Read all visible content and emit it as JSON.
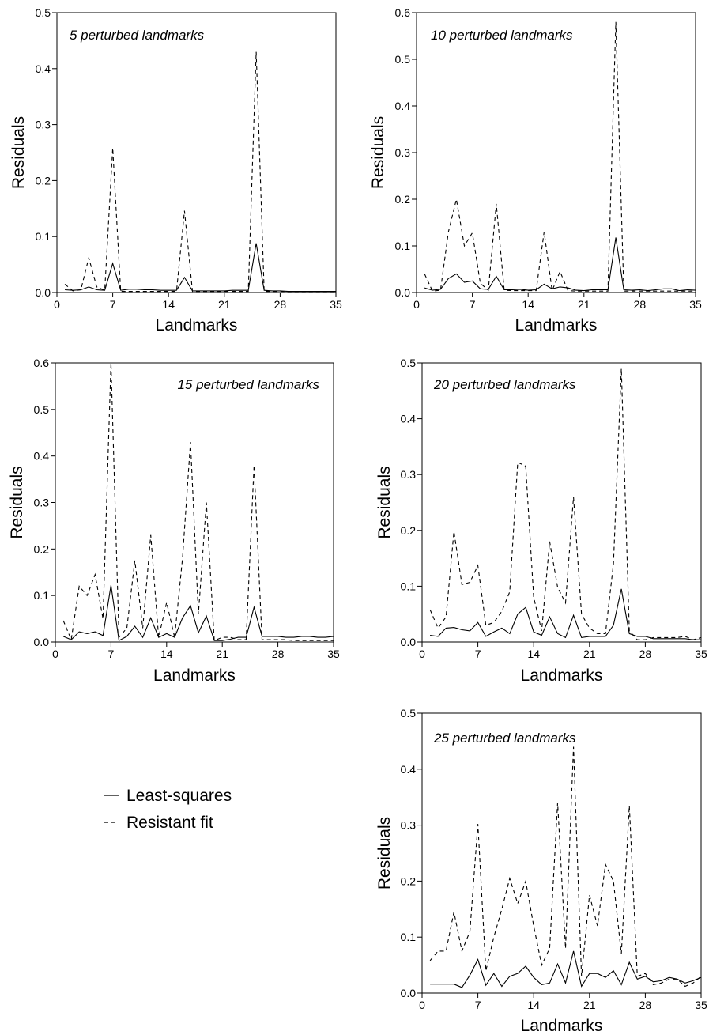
{
  "legend": [
    {
      "label": "Least-squares",
      "style": "solid"
    },
    {
      "label": "Resistant fit",
      "style": "dashed"
    }
  ],
  "chart_data": [
    {
      "type": "line",
      "title": "5 perturbed landmarks",
      "xlabel": "Landmarks",
      "ylabel": "Residuals",
      "xlim": [
        0,
        35
      ],
      "ylim": [
        0,
        0.5
      ],
      "xticks": [
        0,
        7,
        14,
        21,
        28,
        35
      ],
      "yticks": [
        0.0,
        0.1,
        0.2,
        0.3,
        0.4,
        0.5
      ],
      "ytick_labels": [
        "0.0",
        "0.1",
        "0.2",
        "0.3",
        "0.4",
        "0.5"
      ],
      "x": [
        1,
        2,
        3,
        4,
        5,
        6,
        7,
        8,
        9,
        10,
        11,
        12,
        13,
        14,
        15,
        16,
        17,
        18,
        19,
        20,
        21,
        22,
        23,
        24,
        25,
        26,
        27,
        28,
        29,
        30,
        31,
        32,
        33,
        34,
        35
      ],
      "series": [
        {
          "name": "Least-squares",
          "style": "solid",
          "values": [
            0.005,
            0.004,
            0.005,
            0.01,
            0.005,
            0.004,
            0.052,
            0.004,
            0.006,
            0.006,
            0.005,
            0.005,
            0.004,
            0.004,
            0.004,
            0.027,
            0.003,
            0.003,
            0.003,
            0.003,
            0.003,
            0.004,
            0.004,
            0.004,
            0.088,
            0.004,
            0.003,
            0.003,
            0.002,
            0.002,
            0.002,
            0.002,
            0.002,
            0.002,
            0.002
          ]
        },
        {
          "name": "Resistant fit",
          "style": "dashed",
          "values": [
            0.015,
            0.003,
            0.005,
            0.062,
            0.01,
            0.004,
            0.258,
            0.002,
            0.002,
            0.002,
            0.002,
            0.002,
            0.002,
            0.002,
            0.002,
            0.146,
            0.002,
            0.002,
            0.002,
            0.002,
            0.002,
            0.002,
            0.002,
            0.002,
            0.43,
            0.002,
            0.002,
            0.002,
            0.002,
            0.002,
            0.002,
            0.002,
            0.002,
            0.002,
            0.002
          ]
        }
      ]
    },
    {
      "type": "line",
      "title": "10 perturbed landmarks",
      "xlabel": "Landmarks",
      "ylabel": "Residuals",
      "xlim": [
        0,
        35
      ],
      "ylim": [
        0,
        0.6
      ],
      "xticks": [
        0,
        7,
        14,
        21,
        28,
        35
      ],
      "yticks": [
        0.0,
        0.1,
        0.2,
        0.3,
        0.4,
        0.5,
        0.6
      ],
      "ytick_labels": [
        "0.0",
        "0.1",
        "0.2",
        "0.3",
        "0.4",
        "0.5",
        "0.6"
      ],
      "x": [
        1,
        2,
        3,
        4,
        5,
        6,
        7,
        8,
        9,
        10,
        11,
        12,
        13,
        14,
        15,
        16,
        17,
        18,
        19,
        20,
        21,
        22,
        23,
        24,
        25,
        26,
        27,
        28,
        29,
        30,
        31,
        32,
        33,
        34,
        35
      ],
      "series": [
        {
          "name": "Least-squares",
          "style": "solid",
          "values": [
            0.01,
            0.005,
            0.007,
            0.03,
            0.04,
            0.022,
            0.025,
            0.008,
            0.007,
            0.035,
            0.006,
            0.006,
            0.007,
            0.005,
            0.006,
            0.018,
            0.008,
            0.012,
            0.01,
            0.005,
            0.004,
            0.006,
            0.006,
            0.006,
            0.118,
            0.006,
            0.005,
            0.006,
            0.004,
            0.006,
            0.008,
            0.008,
            0.004,
            0.006,
            0.005
          ]
        },
        {
          "name": "Resistant fit",
          "style": "dashed",
          "values": [
            0.04,
            0.003,
            0.005,
            0.13,
            0.2,
            0.1,
            0.128,
            0.02,
            0.005,
            0.19,
            0.005,
            0.004,
            0.004,
            0.004,
            0.004,
            0.13,
            0.004,
            0.045,
            0.004,
            0.003,
            0.003,
            0.003,
            0.003,
            0.003,
            0.58,
            0.003,
            0.003,
            0.003,
            0.003,
            0.003,
            0.003,
            0.003,
            0.003,
            0.003,
            0.003
          ]
        }
      ]
    },
    {
      "type": "line",
      "title": "15 perturbed landmarks",
      "xlabel": "Landmarks",
      "ylabel": "Residuals",
      "xlim": [
        0,
        35
      ],
      "ylim": [
        0,
        0.6
      ],
      "xticks": [
        0,
        7,
        14,
        21,
        28,
        35
      ],
      "yticks": [
        0.0,
        0.1,
        0.2,
        0.3,
        0.4,
        0.5,
        0.6
      ],
      "ytick_labels": [
        "0.0",
        "0.1",
        "0.2",
        "0.3",
        "0.4",
        "0.5",
        "0.6"
      ],
      "x": [
        1,
        2,
        3,
        4,
        5,
        6,
        7,
        8,
        9,
        10,
        11,
        12,
        13,
        14,
        15,
        16,
        17,
        18,
        19,
        20,
        21,
        22,
        23,
        24,
        25,
        26,
        27,
        28,
        29,
        30,
        31,
        32,
        33,
        34,
        35
      ],
      "series": [
        {
          "name": "Least-squares",
          "style": "solid",
          "values": [
            0.012,
            0.005,
            0.022,
            0.018,
            0.022,
            0.014,
            0.122,
            0.003,
            0.012,
            0.034,
            0.01,
            0.052,
            0.01,
            0.018,
            0.01,
            0.052,
            0.078,
            0.02,
            0.056,
            0.003,
            0.003,
            0.006,
            0.01,
            0.01,
            0.075,
            0.012,
            0.012,
            0.012,
            0.01,
            0.01,
            0.012,
            0.012,
            0.01,
            0.01,
            0.012
          ]
        },
        {
          "name": "Resistant fit",
          "style": "dashed",
          "values": [
            0.046,
            0.005,
            0.12,
            0.1,
            0.145,
            0.05,
            0.6,
            0.01,
            0.03,
            0.175,
            0.03,
            0.23,
            0.01,
            0.085,
            0.01,
            0.18,
            0.43,
            0.06,
            0.3,
            0.003,
            0.01,
            0.01,
            0.005,
            0.005,
            0.38,
            0.005,
            0.005,
            0.005,
            0.005,
            0.003,
            0.003,
            0.003,
            0.003,
            0.003,
            0.003
          ]
        }
      ]
    },
    {
      "type": "line",
      "title": "20 perturbed landmarks",
      "xlabel": "Landmarks",
      "ylabel": "Residuals",
      "xlim": [
        0,
        35
      ],
      "ylim": [
        0,
        0.5
      ],
      "xticks": [
        0,
        7,
        14,
        21,
        28,
        35
      ],
      "yticks": [
        0.0,
        0.1,
        0.2,
        0.3,
        0.4,
        0.5
      ],
      "ytick_labels": [
        "0.0",
        "0.1",
        "0.2",
        "0.3",
        "0.4",
        "0.5"
      ],
      "x": [
        1,
        2,
        3,
        4,
        5,
        6,
        7,
        8,
        9,
        10,
        11,
        12,
        13,
        14,
        15,
        16,
        17,
        18,
        19,
        20,
        21,
        22,
        23,
        24,
        25,
        26,
        27,
        28,
        29,
        30,
        31,
        32,
        33,
        34,
        35
      ],
      "series": [
        {
          "name": "Least-squares",
          "style": "solid",
          "values": [
            0.012,
            0.01,
            0.025,
            0.026,
            0.022,
            0.02,
            0.035,
            0.01,
            0.018,
            0.025,
            0.015,
            0.05,
            0.062,
            0.018,
            0.012,
            0.045,
            0.015,
            0.008,
            0.048,
            0.008,
            0.01,
            0.01,
            0.01,
            0.03,
            0.095,
            0.015,
            0.01,
            0.01,
            0.006,
            0.006,
            0.006,
            0.006,
            0.006,
            0.004,
            0.004
          ]
        },
        {
          "name": "Resistant fit",
          "style": "dashed",
          "values": [
            0.058,
            0.025,
            0.045,
            0.198,
            0.103,
            0.107,
            0.137,
            0.03,
            0.035,
            0.055,
            0.09,
            0.322,
            0.315,
            0.08,
            0.02,
            0.18,
            0.098,
            0.07,
            0.26,
            0.05,
            0.025,
            0.015,
            0.015,
            0.14,
            0.49,
            0.02,
            0.004,
            0.004,
            0.008,
            0.008,
            0.008,
            0.008,
            0.01,
            0.004,
            0.008
          ]
        }
      ]
    },
    {
      "type": "line",
      "title": "25 perturbed landmarks",
      "xlabel": "Landmarks",
      "ylabel": "Residuals",
      "xlim": [
        0,
        35
      ],
      "ylim": [
        0,
        0.5
      ],
      "xticks": [
        0,
        7,
        14,
        21,
        28,
        35
      ],
      "yticks": [
        0.0,
        0.1,
        0.2,
        0.3,
        0.4,
        0.5
      ],
      "ytick_labels": [
        "0.0",
        "0.1",
        "0.2",
        "0.3",
        "0.4",
        "0.5"
      ],
      "x": [
        1,
        2,
        3,
        4,
        5,
        6,
        7,
        8,
        9,
        10,
        11,
        12,
        13,
        14,
        15,
        16,
        17,
        18,
        19,
        20,
        21,
        22,
        23,
        24,
        25,
        26,
        27,
        28,
        29,
        30,
        31,
        32,
        33,
        34,
        35
      ],
      "series": [
        {
          "name": "Least-squares",
          "style": "solid",
          "values": [
            0.016,
            0.016,
            0.016,
            0.016,
            0.01,
            0.032,
            0.06,
            0.014,
            0.035,
            0.012,
            0.03,
            0.035,
            0.048,
            0.028,
            0.015,
            0.018,
            0.052,
            0.018,
            0.075,
            0.012,
            0.035,
            0.035,
            0.028,
            0.04,
            0.015,
            0.055,
            0.025,
            0.03,
            0.02,
            0.022,
            0.028,
            0.025,
            0.018,
            0.022,
            0.028
          ]
        },
        {
          "name": "Resistant fit",
          "style": "dashed",
          "values": [
            0.058,
            0.075,
            0.075,
            0.145,
            0.075,
            0.11,
            0.302,
            0.04,
            0.1,
            0.15,
            0.205,
            0.16,
            0.2,
            0.12,
            0.05,
            0.08,
            0.34,
            0.08,
            0.44,
            0.03,
            0.175,
            0.12,
            0.23,
            0.2,
            0.07,
            0.335,
            0.03,
            0.035,
            0.015,
            0.018,
            0.025,
            0.025,
            0.012,
            0.018,
            0.03
          ]
        }
      ]
    }
  ]
}
